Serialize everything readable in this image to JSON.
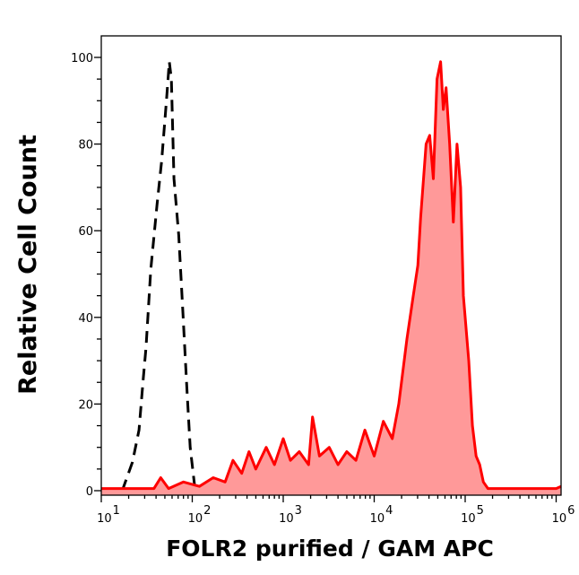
{
  "chart_data": {
    "type": "area",
    "title": "",
    "xlabel": "FOLR2 purified / GAM APC",
    "ylabel": "Relative Cell Count",
    "xscale": "log",
    "xlim": [
      10,
      1150000
    ],
    "ylim": [
      -1,
      105
    ],
    "x_ticks": [
      10,
      100,
      1000,
      10000,
      100000,
      1000000
    ],
    "x_tick_labels": [
      {
        "base": "10",
        "exp": "1"
      },
      {
        "base": "10",
        "exp": "2"
      },
      {
        "base": "10",
        "exp": "3"
      },
      {
        "base": "10",
        "exp": "4"
      },
      {
        "base": "10",
        "exp": "5"
      },
      {
        "base": "10",
        "exp": "6"
      }
    ],
    "y_ticks": [
      0,
      20,
      40,
      60,
      80,
      100
    ],
    "y_tick_labels": [
      "0",
      "20",
      "40",
      "60",
      "80",
      "100"
    ],
    "grid": false,
    "legend": "none",
    "series": [
      {
        "style": "dashed-line",
        "color": "#000000",
        "x": [
          17,
          22,
          26,
          29,
          31,
          35,
          41,
          46,
          52,
          56,
          59,
          63,
          71,
          79,
          87,
          95,
          107,
          300,
          1000,
          10000,
          130000
        ],
        "y": [
          0,
          6.6,
          14,
          26,
          33,
          51,
          66,
          76,
          90,
          99,
          95,
          72,
          59,
          41,
          24,
          10,
          0.5,
          0.3,
          0.3,
          0.3,
          0.3
        ]
      },
      {
        "style": "filled-line",
        "color": "#ff0000",
        "fill": "#ff9999",
        "x": [
          10,
          30,
          38,
          45,
          55,
          80,
          120,
          170,
          230,
          280,
          350,
          420,
          500,
          650,
          800,
          1000,
          1200,
          1500,
          1900,
          2100,
          2500,
          3200,
          4000,
          5000,
          6300,
          7900,
          10000,
          12600,
          15800,
          18600,
          22900,
          26900,
          30200,
          32400,
          37200,
          40700,
          44700,
          49000,
          53700,
          57500,
          61700,
          67600,
          74100,
          81300,
          89100,
          95500,
          100000,
          109600,
          120200,
          131800,
          144500,
          158500,
          177800,
          300000,
          1000000,
          1150000
        ],
        "y": [
          0.5,
          0.5,
          0.5,
          3,
          0.5,
          2,
          1,
          3,
          2,
          7,
          4,
          9,
          5,
          10,
          6,
          12,
          7,
          9,
          6,
          17,
          8,
          10,
          6,
          9,
          7,
          14,
          8,
          16,
          12,
          20,
          35,
          45,
          52,
          63,
          80,
          82,
          72,
          95,
          99,
          88,
          93,
          80,
          62,
          80,
          70,
          45,
          40,
          30,
          15,
          8,
          6,
          2,
          0.5,
          0.5,
          0.5,
          1
        ]
      }
    ]
  }
}
